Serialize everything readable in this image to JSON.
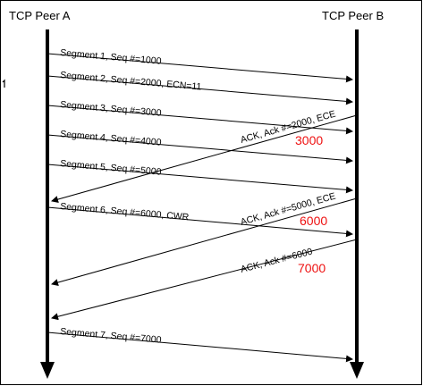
{
  "peers": {
    "a": "TCP Peer A",
    "b": "TCP Peer B"
  },
  "colors": {
    "line": "#000000",
    "ack_number": "#ee1111",
    "border": "#000000"
  },
  "messages": [
    {
      "label": "Segment 1, Seq #=1000"
    },
    {
      "label": "Segment 2, Seq #=2000, ECN=11"
    },
    {
      "label": "Segment 3, Seq #=3000"
    },
    {
      "label": "Segment 4, Seq #=4000"
    },
    {
      "label": "Segment 5, Seq #=5000"
    },
    {
      "label": "Segment 6, Seq #=6000, CWR"
    },
    {
      "label": "Segment 7, Seq #=7000"
    }
  ],
  "acks": [
    {
      "label": "ACK, Ack #=2000, ECE",
      "number": "3000"
    },
    {
      "label": "ACK, Ack #=5000, ECE",
      "number": "6000"
    },
    {
      "label": "ACK, Ack #=6000",
      "number": "7000"
    }
  ]
}
